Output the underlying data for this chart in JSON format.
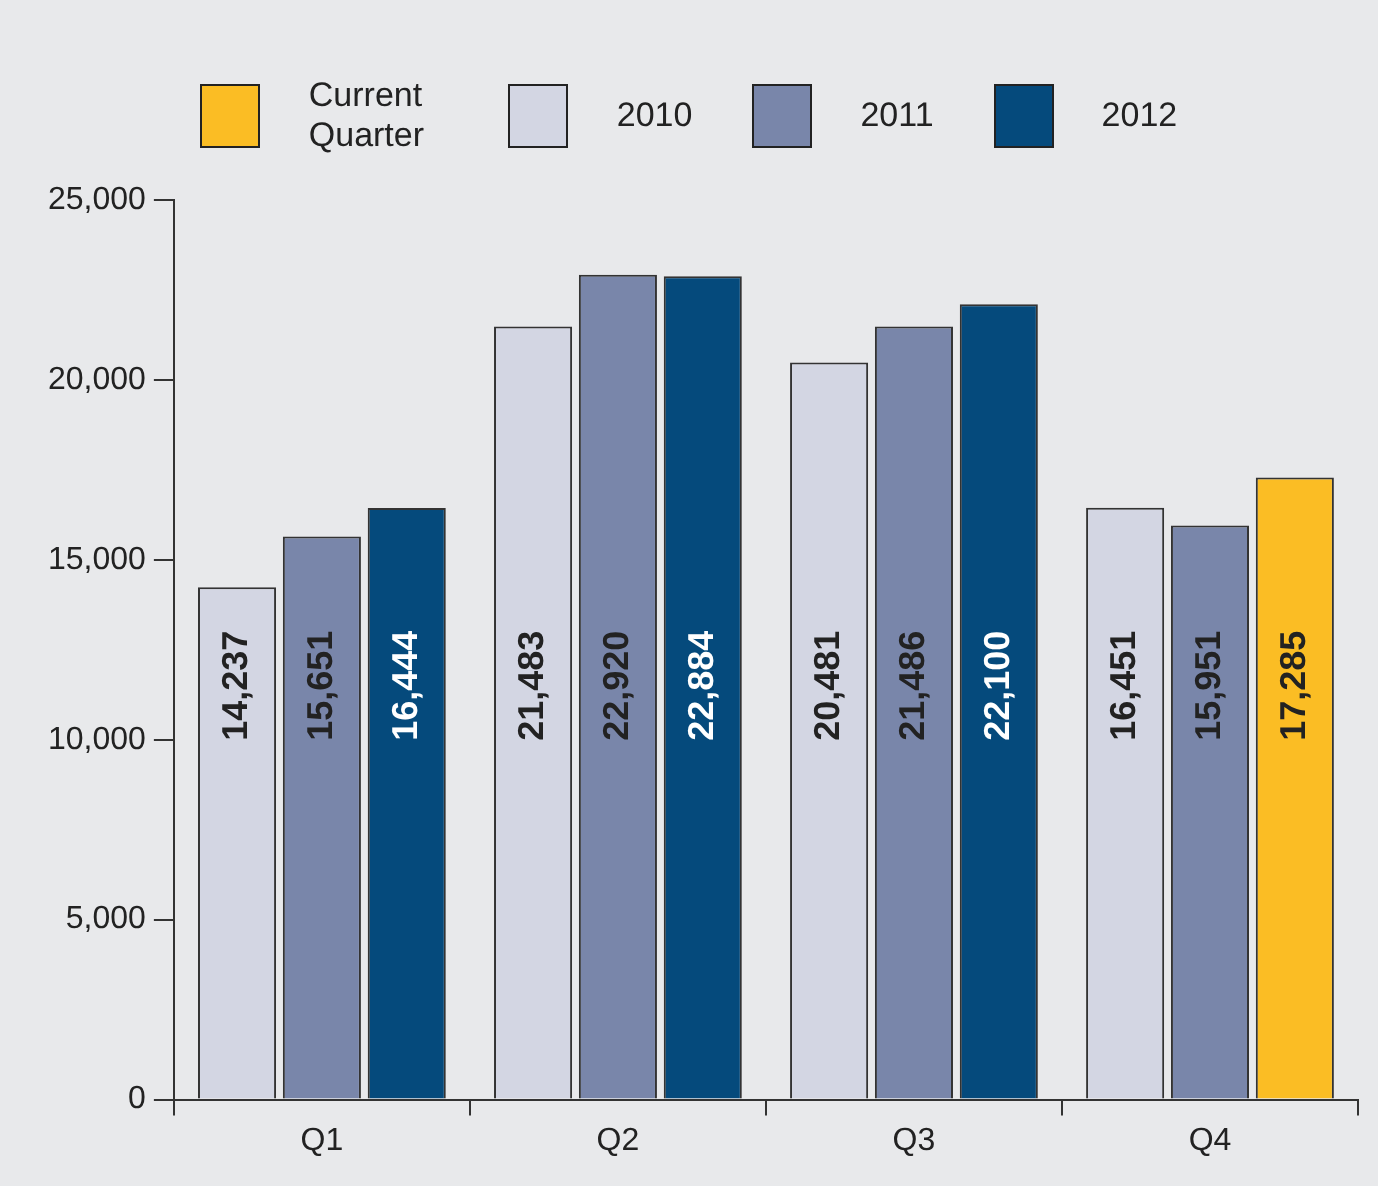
{
  "chart_data": {
    "type": "bar",
    "categories": [
      "Q1",
      "Q2",
      "Q3",
      "Q4"
    ],
    "series": [
      {
        "name": "2010",
        "color": "#d3d6e3",
        "values": [
          14237,
          21483,
          20481,
          16451
        ],
        "value_labels": [
          "14,237",
          "21,483",
          "20,481",
          "16,451"
        ]
      },
      {
        "name": "2011",
        "color": "#7986aa",
        "values": [
          15651,
          22920,
          21486,
          15951
        ],
        "value_labels": [
          "15,651",
          "22,920",
          "21,486",
          "15,951"
        ]
      },
      {
        "name": "2012",
        "color": "#054a7c",
        "values": [
          16444,
          22884,
          22100,
          null
        ],
        "value_labels": [
          "16,444",
          "22,884",
          "22,100",
          null
        ]
      },
      {
        "name": "Current Quarter",
        "color": "#fbbd24",
        "values": [
          null,
          null,
          null,
          17285
        ],
        "value_labels": [
          null,
          null,
          null,
          "17,285"
        ]
      }
    ],
    "ylim": [
      0,
      25000
    ],
    "yticks": [
      0,
      {
        "value": 5000,
        "label": "5,000"
      },
      {
        "value": 10000,
        "label": "10,000"
      },
      {
        "value": 15000,
        "label": "15,000"
      },
      {
        "value": 20000,
        "label": "20,000"
      },
      {
        "value": 25000,
        "label": "25,000"
      }
    ],
    "grid": false,
    "legend": "top"
  }
}
